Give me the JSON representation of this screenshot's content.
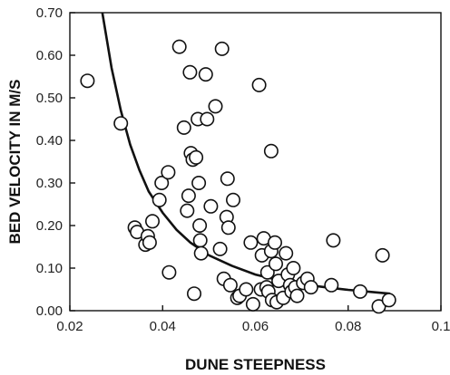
{
  "chart_data": {
    "type": "scatter",
    "xlabel": "DUNE STEEPNESS",
    "ylabel": "BED VELOCITY IN M/S",
    "xlim": [
      0.02,
      0.1
    ],
    "ylim": [
      0.0,
      0.7
    ],
    "xticks": [
      0.02,
      0.04,
      0.06,
      0.08,
      0.1
    ],
    "xtick_labels": [
      "0.02",
      "0.04",
      "0.06",
      "0.08",
      "0.1"
    ],
    "yticks": [
      0.0,
      0.1,
      0.2,
      0.3,
      0.4,
      0.5,
      0.6,
      0.7
    ],
    "ytick_labels": [
      "0.00",
      "0.10",
      "0.20",
      "0.30",
      "0.40",
      "0.50",
      "0.60",
      "0.70"
    ],
    "grid": false,
    "legend": "none",
    "marker_color": "#111111",
    "marker_fill": "#ffffff",
    "series": [
      {
        "kind": "points",
        "x": [
          0.0238,
          0.031,
          0.034,
          0.0345,
          0.0363,
          0.0368,
          0.0372,
          0.0378,
          0.0393,
          0.0398,
          0.0412,
          0.0414,
          0.0436,
          0.0446,
          0.0453,
          0.0456,
          0.0459,
          0.0461,
          0.0465,
          0.0468,
          0.0472,
          0.0476,
          0.0478,
          0.048,
          0.0481,
          0.0483,
          0.0493,
          0.0496,
          0.0504,
          0.0514,
          0.0524,
          0.0528,
          0.0532,
          0.0538,
          0.054,
          0.0542,
          0.0546,
          0.0552,
          0.0561,
          0.0566,
          0.058,
          0.059,
          0.0595,
          0.0608,
          0.0612,
          0.0614,
          0.0618,
          0.0624,
          0.0626,
          0.0628,
          0.0634,
          0.0634,
          0.0636,
          0.0642,
          0.0644,
          0.0646,
          0.065,
          0.066,
          0.0666,
          0.067,
          0.0675,
          0.0678,
          0.0682,
          0.0686,
          0.069,
          0.0703,
          0.0712,
          0.072,
          0.0764,
          0.0768,
          0.0826,
          0.0866,
          0.0874,
          0.0888
        ],
        "y": [
          0.54,
          0.44,
          0.195,
          0.185,
          0.155,
          0.175,
          0.16,
          0.21,
          0.26,
          0.3,
          0.325,
          0.09,
          0.62,
          0.43,
          0.235,
          0.27,
          0.56,
          0.37,
          0.355,
          0.04,
          0.36,
          0.45,
          0.3,
          0.2,
          0.165,
          0.135,
          0.555,
          0.45,
          0.245,
          0.48,
          0.145,
          0.615,
          0.075,
          0.22,
          0.31,
          0.195,
          0.06,
          0.26,
          0.03,
          0.035,
          0.05,
          0.16,
          0.015,
          0.53,
          0.05,
          0.13,
          0.17,
          0.055,
          0.09,
          0.045,
          0.375,
          0.14,
          0.025,
          0.16,
          0.11,
          0.02,
          0.07,
          0.03,
          0.135,
          0.085,
          0.06,
          0.045,
          0.1,
          0.055,
          0.035,
          0.065,
          0.075,
          0.055,
          0.06,
          0.165,
          0.045,
          0.01,
          0.13,
          0.025
        ]
      },
      {
        "kind": "fit_curve",
        "x": [
          0.027,
          0.029,
          0.031,
          0.033,
          0.035,
          0.037,
          0.04,
          0.043,
          0.046,
          0.05,
          0.055,
          0.06,
          0.065,
          0.07,
          0.075,
          0.08,
          0.085,
          0.089
        ],
        "y": [
          0.7,
          0.57,
          0.47,
          0.39,
          0.33,
          0.28,
          0.23,
          0.19,
          0.16,
          0.13,
          0.105,
          0.085,
          0.072,
          0.062,
          0.055,
          0.049,
          0.044,
          0.04
        ]
      }
    ]
  }
}
